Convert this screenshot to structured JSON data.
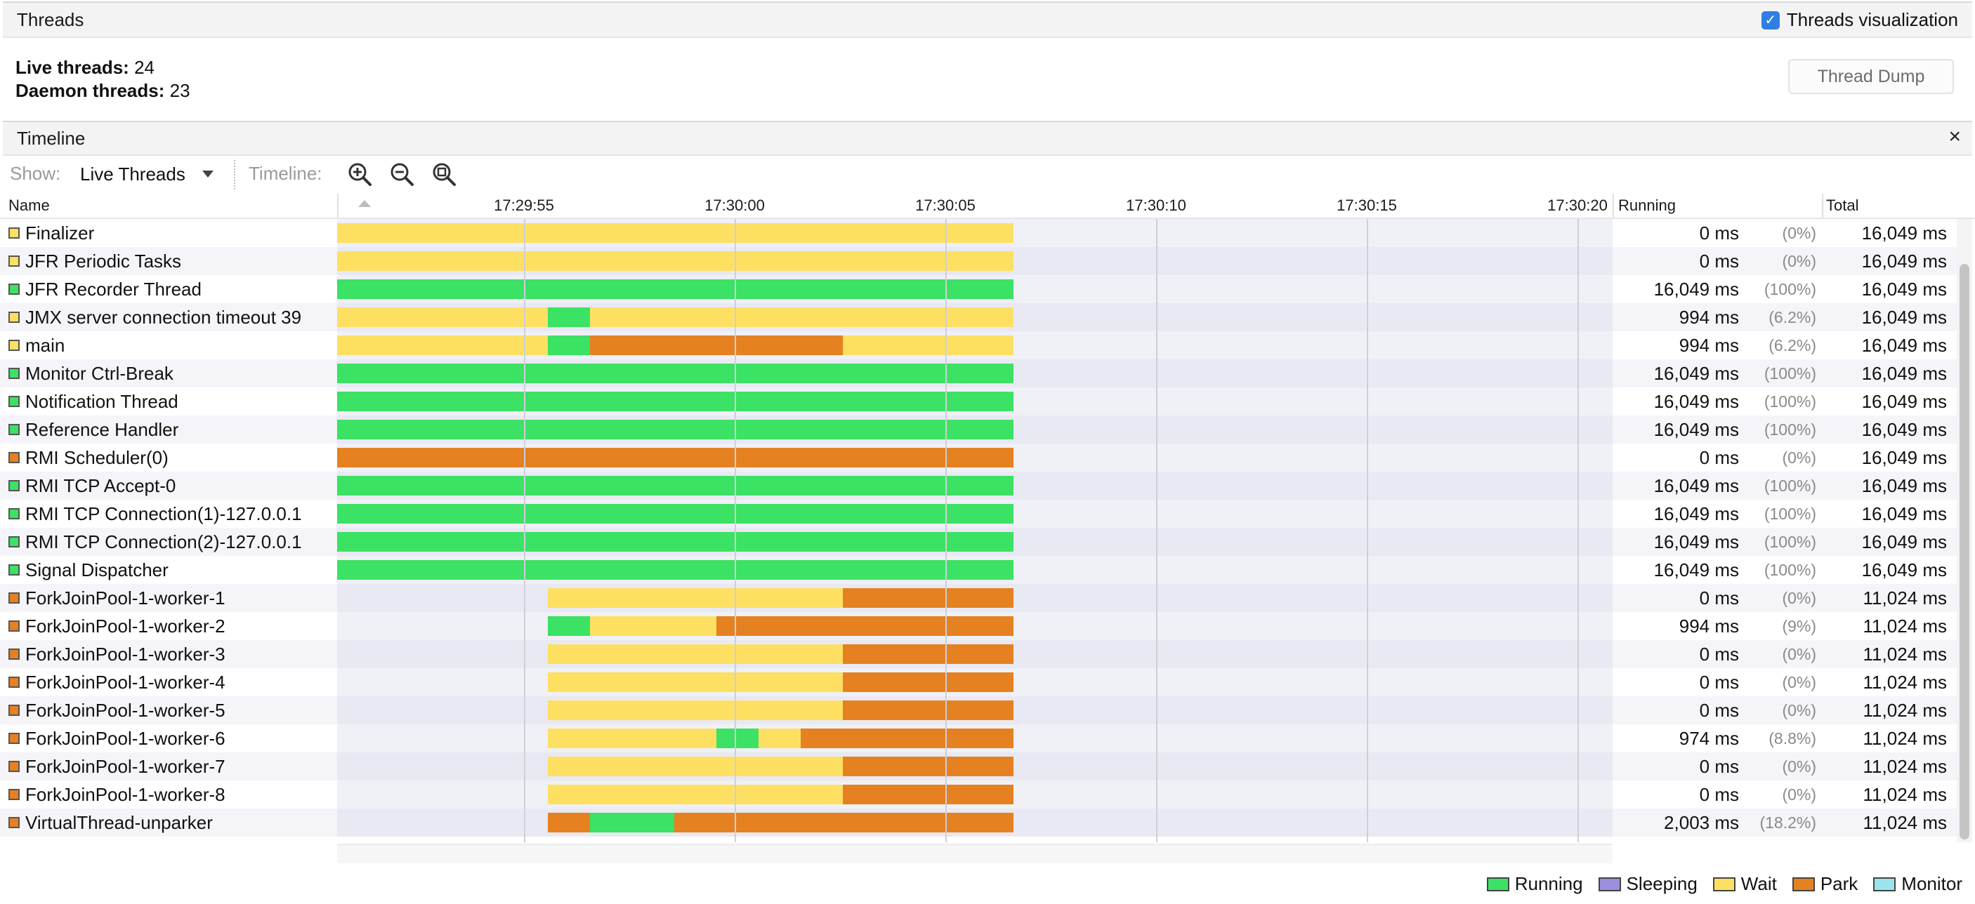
{
  "colors": {
    "running": "#3be264",
    "sleeping": "#9b8edb",
    "wait": "#fde062",
    "park": "#e58121",
    "monitor": "#9be4ee"
  },
  "threads_section": {
    "title": "Threads",
    "viz_label": "Threads visualization",
    "viz_checked": true,
    "live_label": "Live threads:",
    "live_value": "24",
    "daemon_label": "Daemon threads:",
    "daemon_value": "23",
    "thread_dump_label": "Thread Dump"
  },
  "timeline_section": {
    "title": "Timeline",
    "close_glyph": "×"
  },
  "toolbar": {
    "show_label": "Show:",
    "show_value": "Live Threads",
    "timeline_label": "Timeline:",
    "zoom_buttons": [
      "zoom-in-icon",
      "zoom-out-icon",
      "zoom-fit-icon"
    ]
  },
  "table": {
    "header": {
      "name": "Name",
      "running": "Running",
      "total": "Total"
    },
    "time_ticks": [
      "17:29:55",
      "17:30:00",
      "17:30:05",
      "17:30:10",
      "17:30:15",
      "17:30:20"
    ],
    "threads": [
      {
        "name": "Finalizer",
        "state": "wait",
        "running": "0 ms",
        "pct": "(0%)",
        "total": "16,049 ms",
        "segments": [
          [
            0,
            16.049,
            "wait"
          ]
        ]
      },
      {
        "name": "JFR Periodic Tasks",
        "state": "wait",
        "running": "0 ms",
        "pct": "(0%)",
        "total": "16,049 ms",
        "segments": [
          [
            0,
            16.049,
            "wait"
          ]
        ]
      },
      {
        "name": "JFR Recorder Thread",
        "state": "running",
        "running": "16,049 ms",
        "pct": "(100%)",
        "total": "16,049 ms",
        "segments": [
          [
            0,
            16.049,
            "running"
          ]
        ]
      },
      {
        "name": "JMX server connection timeout 39",
        "state": "wait",
        "running": "994 ms",
        "pct": "(6.2%)",
        "total": "16,049 ms",
        "segments": [
          [
            0,
            5,
            "wait"
          ],
          [
            5,
            6,
            "running"
          ],
          [
            6,
            16.049,
            "wait"
          ]
        ]
      },
      {
        "name": "main",
        "state": "wait",
        "running": "994 ms",
        "pct": "(6.2%)",
        "total": "16,049 ms",
        "segments": [
          [
            0,
            5,
            "wait"
          ],
          [
            5,
            6,
            "running"
          ],
          [
            6,
            12,
            "park"
          ],
          [
            12,
            16.049,
            "wait"
          ]
        ]
      },
      {
        "name": "Monitor Ctrl-Break",
        "state": "running",
        "running": "16,049 ms",
        "pct": "(100%)",
        "total": "16,049 ms",
        "segments": [
          [
            0,
            16.049,
            "running"
          ]
        ]
      },
      {
        "name": "Notification Thread",
        "state": "running",
        "running": "16,049 ms",
        "pct": "(100%)",
        "total": "16,049 ms",
        "segments": [
          [
            0,
            16.049,
            "running"
          ]
        ]
      },
      {
        "name": "Reference Handler",
        "state": "running",
        "running": "16,049 ms",
        "pct": "(100%)",
        "total": "16,049 ms",
        "segments": [
          [
            0,
            16.049,
            "running"
          ]
        ]
      },
      {
        "name": "RMI Scheduler(0)",
        "state": "park",
        "running": "0 ms",
        "pct": "(0%)",
        "total": "16,049 ms",
        "segments": [
          [
            0,
            16.049,
            "park"
          ]
        ]
      },
      {
        "name": "RMI TCP Accept-0",
        "state": "running",
        "running": "16,049 ms",
        "pct": "(100%)",
        "total": "16,049 ms",
        "segments": [
          [
            0,
            16.049,
            "running"
          ]
        ]
      },
      {
        "name": "RMI TCP Connection(1)-127.0.0.1",
        "state": "running",
        "running": "16,049 ms",
        "pct": "(100%)",
        "total": "16,049 ms",
        "segments": [
          [
            0,
            16.049,
            "running"
          ]
        ]
      },
      {
        "name": "RMI TCP Connection(2)-127.0.0.1",
        "state": "running",
        "running": "16,049 ms",
        "pct": "(100%)",
        "total": "16,049 ms",
        "segments": [
          [
            0,
            16.049,
            "running"
          ]
        ]
      },
      {
        "name": "Signal Dispatcher",
        "state": "running",
        "running": "16,049 ms",
        "pct": "(100%)",
        "total": "16,049 ms",
        "segments": [
          [
            0,
            16.049,
            "running"
          ]
        ]
      },
      {
        "name": "ForkJoinPool-1-worker-1",
        "state": "park",
        "running": "0 ms",
        "pct": "(0%)",
        "total": "11,024 ms",
        "segments": [
          [
            5,
            12,
            "wait"
          ],
          [
            12,
            16.049,
            "park"
          ]
        ]
      },
      {
        "name": "ForkJoinPool-1-worker-2",
        "state": "park",
        "running": "994 ms",
        "pct": "(9%)",
        "total": "11,024 ms",
        "segments": [
          [
            5,
            6,
            "running"
          ],
          [
            6,
            9,
            "wait"
          ],
          [
            9,
            16.049,
            "park"
          ]
        ]
      },
      {
        "name": "ForkJoinPool-1-worker-3",
        "state": "park",
        "running": "0 ms",
        "pct": "(0%)",
        "total": "11,024 ms",
        "segments": [
          [
            5,
            12,
            "wait"
          ],
          [
            12,
            16.049,
            "park"
          ]
        ]
      },
      {
        "name": "ForkJoinPool-1-worker-4",
        "state": "park",
        "running": "0 ms",
        "pct": "(0%)",
        "total": "11,024 ms",
        "segments": [
          [
            5,
            12,
            "wait"
          ],
          [
            12,
            16.049,
            "park"
          ]
        ]
      },
      {
        "name": "ForkJoinPool-1-worker-5",
        "state": "park",
        "running": "0 ms",
        "pct": "(0%)",
        "total": "11,024 ms",
        "segments": [
          [
            5,
            12,
            "wait"
          ],
          [
            12,
            16.049,
            "park"
          ]
        ]
      },
      {
        "name": "ForkJoinPool-1-worker-6",
        "state": "park",
        "running": "974 ms",
        "pct": "(8.8%)",
        "total": "11,024 ms",
        "segments": [
          [
            5,
            9,
            "wait"
          ],
          [
            9,
            10,
            "running"
          ],
          [
            10,
            11,
            "wait"
          ],
          [
            11,
            16.049,
            "park"
          ]
        ]
      },
      {
        "name": "ForkJoinPool-1-worker-7",
        "state": "park",
        "running": "0 ms",
        "pct": "(0%)",
        "total": "11,024 ms",
        "segments": [
          [
            5,
            12,
            "wait"
          ],
          [
            12,
            16.049,
            "park"
          ]
        ]
      },
      {
        "name": "ForkJoinPool-1-worker-8",
        "state": "park",
        "running": "0 ms",
        "pct": "(0%)",
        "total": "11,024 ms",
        "segments": [
          [
            5,
            12,
            "wait"
          ],
          [
            12,
            16.049,
            "park"
          ]
        ]
      },
      {
        "name": "VirtualThread-unparker",
        "state": "park",
        "running": "2,003 ms",
        "pct": "(18.2%)",
        "total": "11,024 ms",
        "segments": [
          [
            5,
            6,
            "park"
          ],
          [
            6,
            8,
            "running"
          ],
          [
            8,
            16.049,
            "park"
          ]
        ]
      }
    ]
  },
  "legend": [
    {
      "label": "Running",
      "state": "running"
    },
    {
      "label": "Sleeping",
      "state": "sleeping"
    },
    {
      "label": "Wait",
      "state": "wait"
    },
    {
      "label": "Park",
      "state": "park"
    },
    {
      "label": "Monitor",
      "state": "monitor"
    }
  ]
}
